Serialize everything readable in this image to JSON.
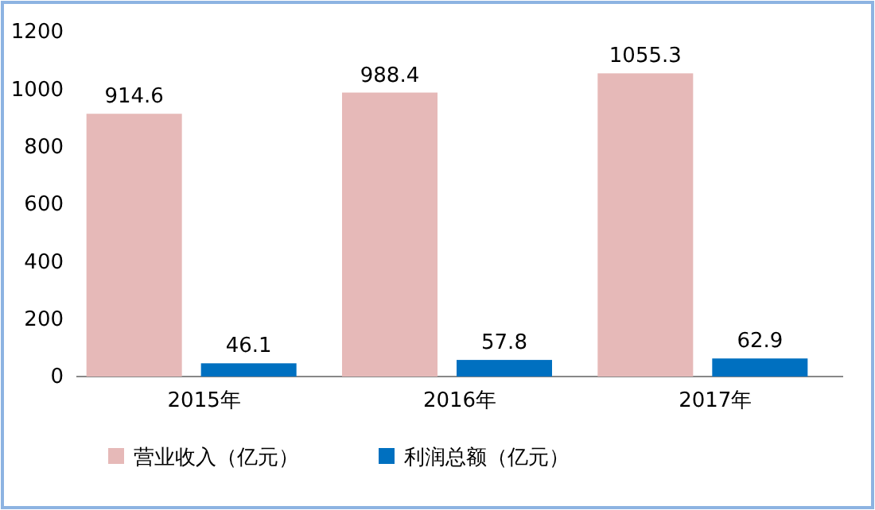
{
  "chart_data": {
    "type": "bar",
    "categories": [
      "2015年",
      "2016年",
      "2017年"
    ],
    "series": [
      {
        "name": "营业收入（亿元）",
        "color": "#e6b9b8",
        "values": [
          914.6,
          988.4,
          1055.3
        ]
      },
      {
        "name": "利润总额（亿元）",
        "color": "#0070c0",
        "values": [
          46.1,
          57.8,
          62.9
        ]
      }
    ],
    "ylim": [
      0,
      1200
    ],
    "yticks": [
      0,
      200,
      400,
      600,
      800,
      1000,
      1200
    ],
    "data_labels": true,
    "legend": "bottom"
  }
}
